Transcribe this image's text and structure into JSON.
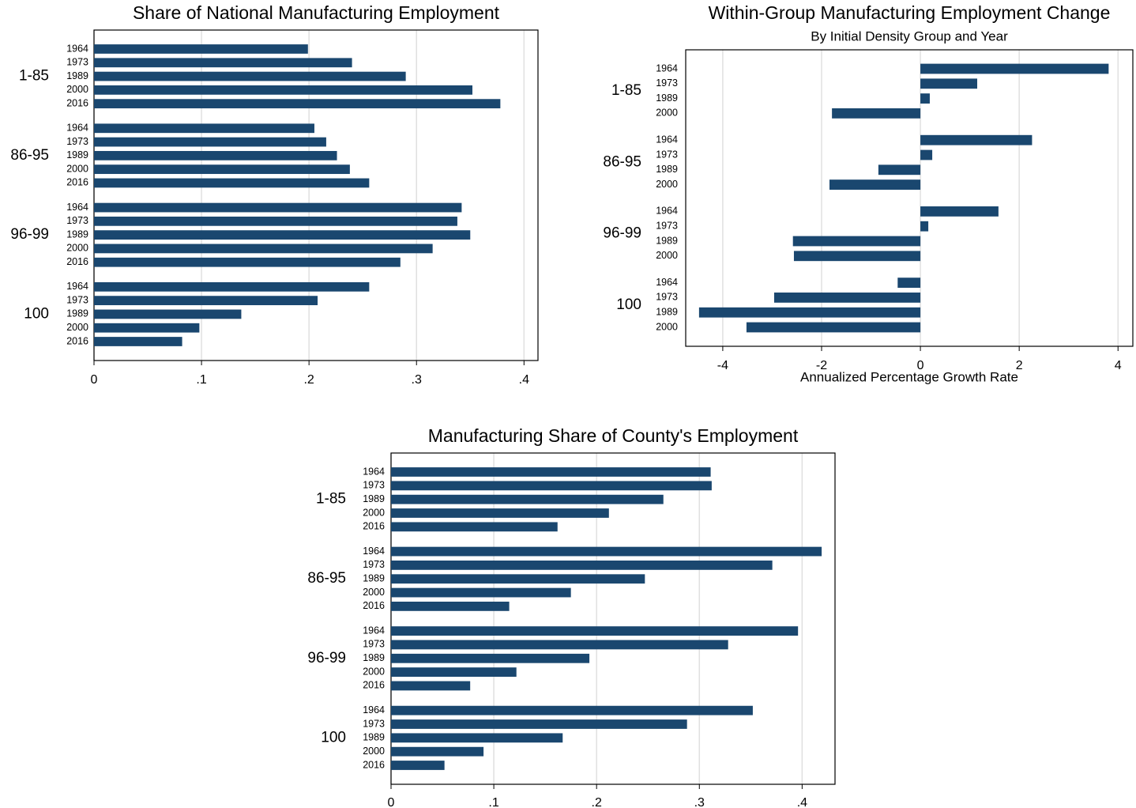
{
  "chart_data": [
    {
      "type": "bar",
      "orientation": "horizontal",
      "title": "Share of National Manufacturing Employment",
      "color": "#1a476f",
      "grid": true,
      "xlim": [
        0,
        0.413
      ],
      "xticks": [
        0,
        {
          "value": 0.1,
          "label": ".1"
        },
        {
          "value": 0.2,
          "label": ".2"
        },
        {
          "value": 0.3,
          "label": ".3"
        },
        {
          "value": 0.4,
          "label": ".4"
        }
      ],
      "groups": [
        {
          "name": "1-85",
          "categories": [
            "1964",
            "1973",
            "1989",
            "2000",
            "2016"
          ],
          "values": [
            0.199,
            0.24,
            0.29,
            0.352,
            0.378
          ]
        },
        {
          "name": "86-95",
          "categories": [
            "1964",
            "1973",
            "1989",
            "2000",
            "2016"
          ],
          "values": [
            0.205,
            0.216,
            0.226,
            0.238,
            0.256
          ]
        },
        {
          "name": "96-99",
          "categories": [
            "1964",
            "1973",
            "1989",
            "2000",
            "2016"
          ],
          "values": [
            0.342,
            0.338,
            0.35,
            0.315,
            0.285
          ]
        },
        {
          "name": "100",
          "categories": [
            "1964",
            "1973",
            "1989",
            "2000",
            "2016"
          ],
          "values": [
            0.256,
            0.208,
            0.137,
            0.098,
            0.082
          ]
        }
      ]
    },
    {
      "type": "bar",
      "orientation": "horizontal",
      "title": "Within-Group Manufacturing Employment Change",
      "subtitle": "By Initial Density Group and Year",
      "x_label": "Annualized Percentage Growth Rate",
      "color": "#1a476f",
      "grid": true,
      "xlim": [
        -4.75,
        4.3
      ],
      "xticks": [
        -4,
        -2,
        0,
        2,
        4
      ],
      "groups": [
        {
          "name": "1-85",
          "categories": [
            "1964",
            "1973",
            "1989",
            "2000"
          ],
          "values": [
            3.81,
            1.15,
            0.19,
            -1.79
          ]
        },
        {
          "name": "86-95",
          "categories": [
            "1964",
            "1973",
            "1989",
            "2000"
          ],
          "values": [
            2.26,
            0.24,
            -0.85,
            -1.84
          ]
        },
        {
          "name": "96-99",
          "categories": [
            "1964",
            "1973",
            "1989",
            "2000"
          ],
          "values": [
            1.58,
            0.16,
            -2.58,
            -2.56
          ]
        },
        {
          "name": "100",
          "categories": [
            "1964",
            "1973",
            "1989",
            "2000"
          ],
          "values": [
            -0.46,
            -2.96,
            -4.48,
            -3.52
          ]
        }
      ]
    },
    {
      "type": "bar",
      "orientation": "horizontal",
      "title": "Manufacturing Share of County's Employment",
      "color": "#1a476f",
      "grid": true,
      "xlim": [
        0,
        0.432
      ],
      "xticks": [
        0,
        {
          "value": 0.1,
          "label": ".1"
        },
        {
          "value": 0.2,
          "label": ".2"
        },
        {
          "value": 0.3,
          "label": ".3"
        },
        {
          "value": 0.4,
          "label": ".4"
        }
      ],
      "groups": [
        {
          "name": "1-85",
          "categories": [
            "1964",
            "1973",
            "1989",
            "2000",
            "2016"
          ],
          "values": [
            0.311,
            0.312,
            0.265,
            0.212,
            0.162
          ]
        },
        {
          "name": "86-95",
          "categories": [
            "1964",
            "1973",
            "1989",
            "2000",
            "2016"
          ],
          "values": [
            0.419,
            0.371,
            0.247,
            0.175,
            0.115
          ]
        },
        {
          "name": "96-99",
          "categories": [
            "1964",
            "1973",
            "1989",
            "2000",
            "2016"
          ],
          "values": [
            0.396,
            0.328,
            0.193,
            0.122,
            0.077
          ]
        },
        {
          "name": "100",
          "categories": [
            "1964",
            "1973",
            "1989",
            "2000",
            "2016"
          ],
          "values": [
            0.352,
            0.288,
            0.167,
            0.09,
            0.052
          ]
        }
      ]
    }
  ]
}
